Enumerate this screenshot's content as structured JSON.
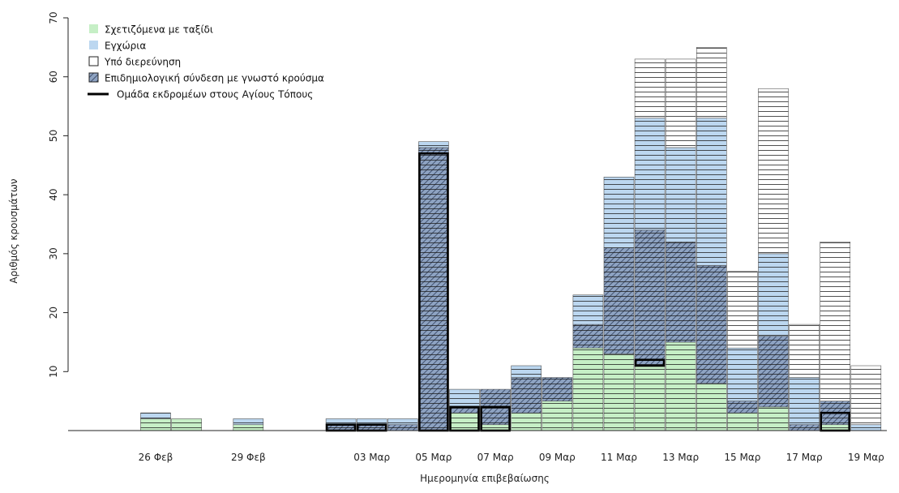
{
  "chart_data": {
    "type": "bar",
    "stacked": true,
    "xlabel": "Ημερομηνία επιβεβαίωσης",
    "ylabel": "Αριθμός κρουσμάτων",
    "ylim": [
      0,
      70
    ],
    "yticks": [
      10,
      20,
      30,
      40,
      50,
      60,
      70
    ],
    "grid": false,
    "legend_position": "top-left",
    "x_tick_labels": [
      "26 Φεβ",
      "29 Φεβ",
      "03 Μαρ",
      "05 Μαρ",
      "07 Μαρ",
      "09 Μαρ",
      "11 Μαρ",
      "13 Μαρ",
      "15 Μαρ",
      "17 Μαρ",
      "19 Μαρ"
    ],
    "x_tick_days": [
      26,
      29,
      33,
      35,
      37,
      39,
      41,
      43,
      45,
      47,
      49
    ],
    "categories": [
      "26 Φεβ",
      "27 Φεβ",
      "29 Φεβ",
      "02 Μαρ",
      "03 Μαρ",
      "04 Μαρ",
      "05 Μαρ",
      "06 Μαρ",
      "07 Μαρ",
      "08 Μαρ",
      "09 Μαρ",
      "10 Μαρ",
      "11 Μαρ",
      "12 Μαρ",
      "13 Μαρ",
      "14 Μαρ",
      "15 Μαρ",
      "16 Μαρ",
      "17 Μαρ",
      "18 Μαρ",
      "19 Μαρ"
    ],
    "day_index": [
      26,
      27,
      29,
      32,
      33,
      34,
      35,
      36,
      37,
      38,
      39,
      40,
      41,
      42,
      43,
      44,
      45,
      46,
      47,
      48,
      49
    ],
    "series": [
      {
        "name": "Σχετιζόμενα με ταξίδι",
        "color": "#c6efc6",
        "values": [
          2,
          2,
          1,
          0,
          0,
          0,
          0,
          3,
          1,
          3,
          5,
          14,
          13,
          11,
          15,
          8,
          3,
          4,
          0,
          1,
          0
        ]
      },
      {
        "name": "Επιδημιολογική σύνδεση με γνωστό κρούσμα",
        "color": "#7a8fb0",
        "values": [
          0,
          0,
          0,
          1,
          1,
          1,
          48,
          1,
          6,
          6,
          4,
          4,
          18,
          23,
          17,
          20,
          2,
          12,
          1,
          4,
          0
        ]
      },
      {
        "name": "Εγχώρια",
        "color": "#bcd7f0",
        "values": [
          1,
          0,
          1,
          1,
          1,
          1,
          1,
          3,
          0,
          2,
          0,
          5,
          12,
          19,
          16,
          25,
          9,
          14,
          8,
          0,
          1
        ]
      },
      {
        "name": "Υπό διερεύνηση",
        "color": "#ffffff",
        "values": [
          0,
          0,
          0,
          0,
          0,
          0,
          0,
          0,
          0,
          0,
          0,
          0,
          0,
          10,
          15,
          12,
          13,
          28,
          9,
          27,
          10
        ]
      }
    ],
    "outline_series": {
      "name": "Ομάδα εκδρομέων στους Αγίους Τόπους",
      "values": [
        0,
        0,
        0,
        1,
        1,
        0,
        47,
        4,
        4,
        0,
        0,
        0,
        0,
        12,
        0,
        0,
        0,
        0,
        0,
        3,
        0
      ]
    },
    "legend": [
      {
        "label": "Σχετιζόμενα με ταξίδι",
        "symbol": "fill",
        "color": "#c6efc6"
      },
      {
        "label": "Εγχώρια",
        "symbol": "fill",
        "color": "#bcd7f0"
      },
      {
        "label": "Υπό διερεύνηση",
        "symbol": "box",
        "color": "#ffffff"
      },
      {
        "label": "Επιδημιολογική σύνδεση με γνωστό κρούσμα",
        "symbol": "hatch",
        "color": "#7a8fb0"
      },
      {
        "label": "Ομάδα εκδρομέων στους Αγίους Τόπους",
        "symbol": "line",
        "color": "#000000"
      }
    ]
  }
}
